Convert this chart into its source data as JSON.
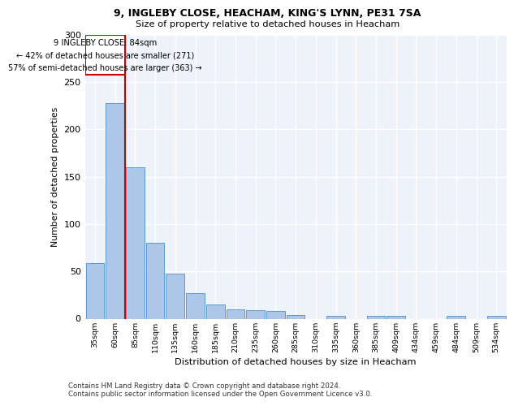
{
  "title1": "9, INGLEBY CLOSE, HEACHAM, KING'S LYNN, PE31 7SA",
  "title2": "Size of property relative to detached houses in Heacham",
  "xlabel": "Distribution of detached houses by size in Heacham",
  "ylabel": "Number of detached properties",
  "categories": [
    "35sqm",
    "60sqm",
    "85sqm",
    "110sqm",
    "135sqm",
    "160sqm",
    "185sqm",
    "210sqm",
    "235sqm",
    "260sqm",
    "285sqm",
    "310sqm",
    "335sqm",
    "360sqm",
    "385sqm",
    "409sqm",
    "434sqm",
    "459sqm",
    "484sqm",
    "509sqm",
    "534sqm"
  ],
  "values": [
    59,
    228,
    160,
    80,
    48,
    27,
    15,
    10,
    9,
    8,
    4,
    0,
    3,
    0,
    3,
    3,
    0,
    0,
    3,
    0,
    3
  ],
  "bar_color": "#aec6e8",
  "bar_edgecolor": "#5b9bd5",
  "marker_line_label": "9 INGLEBY CLOSE: 84sqm",
  "annotation_line1": "← 42% of detached houses are smaller (271)",
  "annotation_line2": "57% of semi-detached houses are larger (363) →",
  "box_color": "#cc0000",
  "ylim": [
    0,
    300
  ],
  "yticks": [
    0,
    50,
    100,
    150,
    200,
    250,
    300
  ],
  "footer": "Contains HM Land Registry data © Crown copyright and database right 2024.\nContains public sector information licensed under the Open Government Licence v3.0.",
  "bg_color": "#eef2f9",
  "grid_color": "#ffffff"
}
